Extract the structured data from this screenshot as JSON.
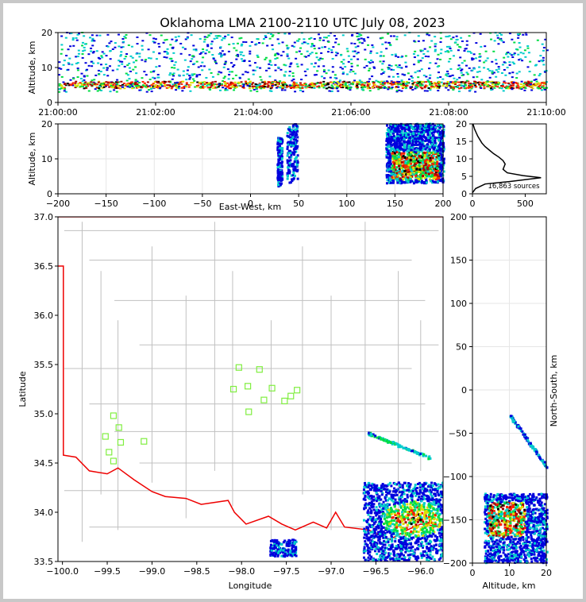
{
  "title": "Oklahoma LMA 2100-2110 UTC July 08, 2023",
  "chart_data": [
    {
      "type": "scatter",
      "panel": "altitude-vs-time",
      "xlabel": "",
      "ylabel": "Altitude, km",
      "xticks": [
        "21:00:00",
        "21:02:00",
        "21:04:00",
        "21:06:00",
        "21:08:00",
        "21:10:00"
      ],
      "xlim": [
        "21:00:00",
        "21:10:00"
      ],
      "ylim": [
        0,
        20
      ],
      "yticks": [
        0,
        10,
        20
      ],
      "altitude_band_km": [
        3,
        20
      ],
      "dense_band_km": [
        4,
        6
      ]
    },
    {
      "type": "heatmap",
      "panel": "altitude-vs-east-west",
      "xlabel": "East-West, km",
      "ylabel": "Altitude, km",
      "xlim": [
        -200,
        200
      ],
      "ylim": [
        0,
        20
      ],
      "xticks": [
        -200,
        -150,
        -100,
        -50,
        0,
        50,
        100,
        150,
        200
      ],
      "yticks": [
        0,
        10,
        20
      ],
      "grid": true,
      "clusters": [
        {
          "x_range": [
            27,
            32
          ],
          "z_range": [
            2,
            16
          ]
        },
        {
          "x_range": [
            37,
            48
          ],
          "z_range": [
            3,
            20
          ]
        },
        {
          "x_range": [
            140,
            200
          ],
          "z_range": [
            3,
            20
          ],
          "core_x": [
            145,
            195
          ],
          "core_z": [
            4,
            12
          ]
        }
      ]
    },
    {
      "type": "line",
      "panel": "altitude-histogram",
      "xlim": [
        0,
        700
      ],
      "ylim": [
        0,
        20
      ],
      "xticks": [
        0,
        500
      ],
      "yticks": [
        0,
        5,
        10,
        15,
        20
      ],
      "annotation": "16,863 sources",
      "profile": [
        [
          0,
          0.3
        ],
        [
          30,
          1.5
        ],
        [
          120,
          2.8
        ],
        [
          350,
          3.5
        ],
        [
          650,
          4.6
        ],
        [
          480,
          5.2
        ],
        [
          330,
          6.0
        ],
        [
          290,
          7.0
        ],
        [
          310,
          8.5
        ],
        [
          290,
          9.5
        ],
        [
          250,
          10.5
        ],
        [
          200,
          11.5
        ],
        [
          160,
          12.5
        ],
        [
          120,
          13.5
        ],
        [
          90,
          14.5
        ],
        [
          70,
          15.5
        ],
        [
          50,
          16.5
        ],
        [
          35,
          17.5
        ],
        [
          20,
          18.5
        ],
        [
          10,
          19.5
        ],
        [
          5,
          20
        ]
      ]
    },
    {
      "type": "scatter",
      "panel": "plan-view-map",
      "xlabel": "Longitude",
      "ylabel": "Latitude",
      "xlim": [
        -100.05,
        -95.75
      ],
      "ylim": [
        33.5,
        37.0
      ],
      "xticks": [
        -100.0,
        -99.5,
        -99.0,
        -98.5,
        -98.0,
        -97.5,
        -97.0,
        -96.5,
        -96.0
      ],
      "yticks": [
        33.5,
        34.0,
        34.5,
        35.0,
        35.5,
        36.0,
        36.5,
        37.0
      ],
      "stations": [
        [
          -98.03,
          35.47
        ],
        [
          -97.8,
          35.45
        ],
        [
          -98.09,
          35.25
        ],
        [
          -97.93,
          35.28
        ],
        [
          -97.66,
          35.26
        ],
        [
          -97.38,
          35.24
        ],
        [
          -97.45,
          35.18
        ],
        [
          -97.75,
          35.14
        ],
        [
          -97.52,
          35.13
        ],
        [
          -97.92,
          35.02
        ],
        [
          -99.43,
          34.98
        ],
        [
          -99.37,
          34.86
        ],
        [
          -99.52,
          34.77
        ],
        [
          -99.35,
          34.71
        ],
        [
          -99.09,
          34.72
        ],
        [
          -99.48,
          34.61
        ],
        [
          -99.43,
          34.52
        ]
      ],
      "clusters": [
        {
          "lon_range": [
            -96.65,
            -95.75
          ],
          "lat_range": [
            33.5,
            34.3
          ],
          "core": [
            -96.1,
            33.93
          ]
        },
        {
          "lon_range": [
            -96.6,
            -95.9
          ],
          "lat_range": [
            34.55,
            34.8
          ],
          "shape": "streak"
        },
        {
          "lon_range": [
            -97.7,
            -97.4
          ],
          "lat_range": [
            33.55,
            33.72
          ]
        }
      ]
    },
    {
      "type": "heatmap",
      "panel": "north-south-vs-altitude",
      "xlabel": "Altitude, km",
      "ylabel": "North-South, km",
      "xlim": [
        0,
        20
      ],
      "ylim": [
        -200,
        200
      ],
      "xticks": [
        0,
        10,
        20
      ],
      "yticks": [
        -200,
        -150,
        -100,
        -50,
        0,
        50,
        100,
        150,
        200
      ],
      "grid": true,
      "clusters": [
        {
          "alt_range": [
            3,
            20
          ],
          "ns_range": [
            -200,
            -120
          ],
          "core_alt": [
            4,
            14
          ],
          "core_ns": [
            -170,
            -130
          ]
        },
        {
          "alt_range": [
            10,
            20
          ],
          "ns_range": [
            -90,
            -30
          ],
          "shape": "streak"
        }
      ]
    }
  ],
  "colors": {
    "state_border": "#ee0000",
    "county_lines": "#c0c0c0",
    "station_marker": "#80ee40",
    "density_low": "#0000dd",
    "density_mid": "#00dd44",
    "density_high": "#ff2200"
  }
}
